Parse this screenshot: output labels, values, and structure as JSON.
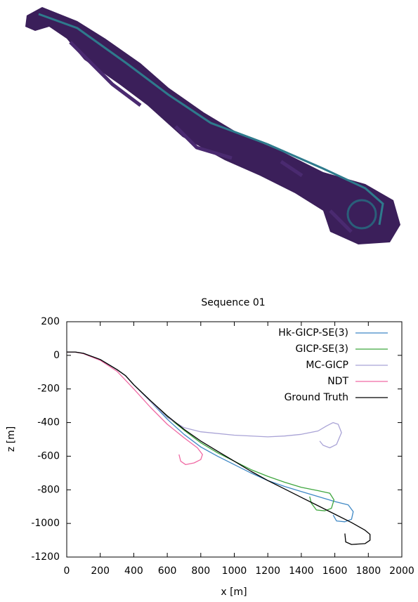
{
  "chart_data": {
    "type": "line",
    "title": "Sequence 01",
    "xlabel": "x [m]",
    "ylabel": "z [m]",
    "xlim": [
      0,
      2000
    ],
    "ylim": [
      -1200,
      200
    ],
    "xticks": [
      0,
      200,
      400,
      600,
      800,
      1000,
      1200,
      1400,
      1600,
      1800,
      2000
    ],
    "yticks": [
      -1200,
      -1000,
      -800,
      -600,
      -400,
      -200,
      0,
      200
    ],
    "grid": false,
    "legend": "top-right",
    "series": [
      {
        "name": "Hk-GICP-SE(3)",
        "color": "#3f88c5",
        "x": [
          0,
          50,
          100,
          200,
          300,
          350,
          400,
          500,
          600,
          700,
          800,
          900,
          1000,
          1100,
          1200,
          1300,
          1400,
          1500,
          1600,
          1680,
          1710,
          1700,
          1660,
          1610,
          1590
        ],
        "values": [
          20,
          20,
          12,
          -25,
          -85,
          -120,
          -175,
          -275,
          -380,
          -470,
          -545,
          -600,
          -650,
          -700,
          -745,
          -780,
          -810,
          -840,
          -870,
          -890,
          -930,
          -975,
          -990,
          -985,
          -950
        ]
      },
      {
        "name": "GICP-SE(3)",
        "color": "#3ea63e",
        "x": [
          0,
          50,
          100,
          200,
          300,
          350,
          400,
          500,
          600,
          700,
          800,
          900,
          1000,
          1100,
          1200,
          1300,
          1400,
          1500,
          1570,
          1595,
          1580,
          1540,
          1490,
          1460,
          1450
        ],
        "values": [
          20,
          20,
          12,
          -25,
          -85,
          -120,
          -175,
          -270,
          -365,
          -445,
          -520,
          -580,
          -630,
          -680,
          -720,
          -755,
          -785,
          -805,
          -820,
          -860,
          -910,
          -925,
          -920,
          -880,
          -840
        ]
      },
      {
        "name": "MC-GICP",
        "color": "#a9a3d6",
        "x": [
          0,
          50,
          100,
          200,
          300,
          350,
          400,
          500,
          600,
          700,
          800,
          1000,
          1200,
          1300,
          1400,
          1500,
          1550,
          1590,
          1620,
          1640,
          1610,
          1570,
          1530,
          1510
        ],
        "values": [
          20,
          20,
          12,
          -25,
          -85,
          -120,
          -175,
          -275,
          -370,
          -430,
          -455,
          -475,
          -485,
          -480,
          -470,
          -450,
          -420,
          -400,
          -410,
          -460,
          -530,
          -550,
          -535,
          -510
        ]
      },
      {
        "name": "NDT",
        "color": "#f06aa4",
        "x": [
          0,
          50,
          100,
          200,
          300,
          400,
          500,
          600,
          700,
          780,
          810,
          800,
          760,
          710,
          680,
          670
        ],
        "values": [
          20,
          20,
          10,
          -30,
          -95,
          -200,
          -310,
          -410,
          -490,
          -550,
          -590,
          -620,
          -640,
          -650,
          -630,
          -590
        ]
      },
      {
        "name": "Ground Truth",
        "color": "#000000",
        "x": [
          0,
          50,
          100,
          200,
          300,
          350,
          400,
          500,
          600,
          700,
          800,
          900,
          1000,
          1100,
          1200,
          1300,
          1400,
          1500,
          1600,
          1700,
          1780,
          1810,
          1810,
          1780,
          1700,
          1665,
          1660
        ],
        "values": [
          20,
          20,
          12,
          -25,
          -85,
          -120,
          -175,
          -270,
          -360,
          -440,
          -510,
          -570,
          -630,
          -690,
          -745,
          -795,
          -845,
          -895,
          -945,
          -995,
          -1040,
          -1065,
          -1100,
          -1120,
          -1125,
          -1110,
          -1060
        ]
      }
    ]
  }
}
